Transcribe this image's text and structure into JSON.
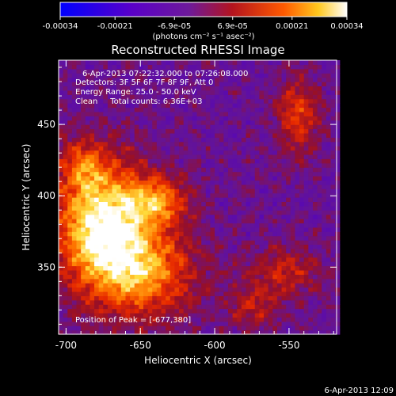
{
  "chart_data": {
    "type": "heatmap",
    "title": "Reconstructed RHESSI Image",
    "xlabel": "Heliocentric X (arcsec)",
    "ylabel": "Heliocentric Y (arcsec)",
    "xlim": [
      -705,
      -518
    ],
    "ylim": [
      303,
      495
    ],
    "x_ticks": [
      -700,
      -650,
      -600,
      -550
    ],
    "y_ticks": [
      350,
      400,
      450
    ],
    "colorbar": {
      "range": [
        -0.00034,
        0.00034
      ],
      "tick_values": [
        -0.00034,
        -0.00021,
        -6.9e-05,
        6.9e-05,
        0.00021,
        0.00034
      ],
      "tick_labels": [
        "-0.00034",
        "-0.00021",
        "-6.9e-05",
        "6.9e-05",
        "0.00021",
        "0.00034"
      ],
      "unit_label": "(photons cm⁻² s⁻¹ asec⁻²)",
      "colormap_stops": [
        "#0000ff",
        "#4b00b4",
        "#7d2bb0",
        "#a01e1e",
        "#ff4000",
        "#ffaa00",
        "#ffffff"
      ]
    },
    "annotations": {
      "time_range": "6-Apr-2013 07:22:32.000 to 07:26:08.000",
      "detectors": "Detectors: 3F 5F 6F 7F 8F 9F, Att 0",
      "energy": "Energy Range: 25.0 - 50.0 keV",
      "clean": "Clean     Total counts: 6.36E+03",
      "peak": "Position of Peak = [-677,380]"
    },
    "peak": {
      "x": -677,
      "y": 380
    },
    "sources": [
      {
        "x": -677,
        "y": 380,
        "sx": 22,
        "sy": 30,
        "amp": 1.0
      },
      {
        "x": -640,
        "y": 395,
        "sx": 14,
        "sy": 12,
        "amp": 0.55
      },
      {
        "x": -650,
        "y": 345,
        "sx": 25,
        "sy": 22,
        "amp": 0.65
      },
      {
        "x": -690,
        "y": 420,
        "sx": 10,
        "sy": 12,
        "amp": 0.35
      },
      {
        "x": -545,
        "y": 455,
        "sx": 10,
        "sy": 18,
        "amp": 0.45
      },
      {
        "x": -555,
        "y": 345,
        "sx": 18,
        "sy": 12,
        "amp": 0.35
      },
      {
        "x": -575,
        "y": 320,
        "sx": 12,
        "sy": 10,
        "amp": 0.3
      }
    ]
  },
  "footer": {
    "timestamp": "6-Apr-2013 12:09"
  }
}
